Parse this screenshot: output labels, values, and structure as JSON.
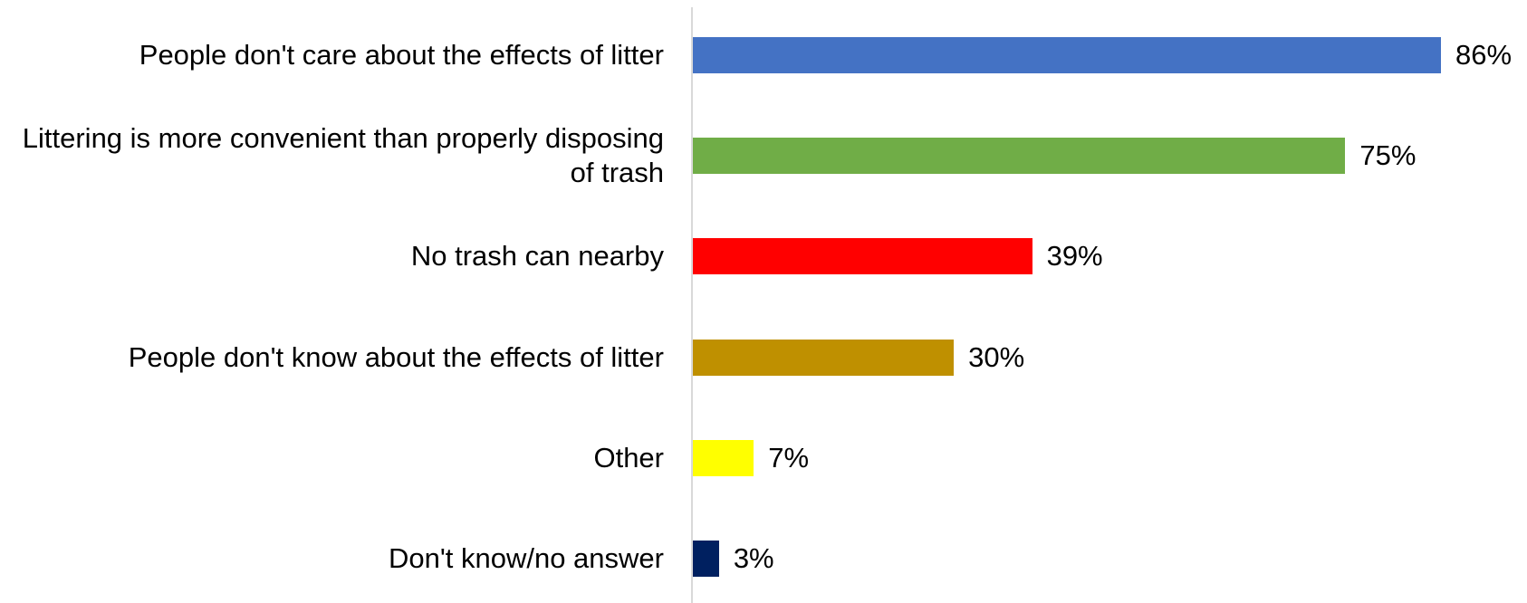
{
  "chart_data": {
    "type": "bar",
    "orientation": "horizontal",
    "categories": [
      "People don't care about the effects of litter",
      "Littering is more convenient than properly disposing of trash",
      "No trash can nearby",
      "People don't know about the effects of litter",
      "Other",
      "Don't know/no answer"
    ],
    "values": [
      86,
      75,
      39,
      30,
      7,
      3
    ],
    "value_labels": [
      "86%",
      "75%",
      "39%",
      "30%",
      "7%",
      "3%"
    ],
    "colors": [
      "#4472c4",
      "#70ad47",
      "#ff0000",
      "#bf9000",
      "#ffff00",
      "#002060"
    ]
  }
}
